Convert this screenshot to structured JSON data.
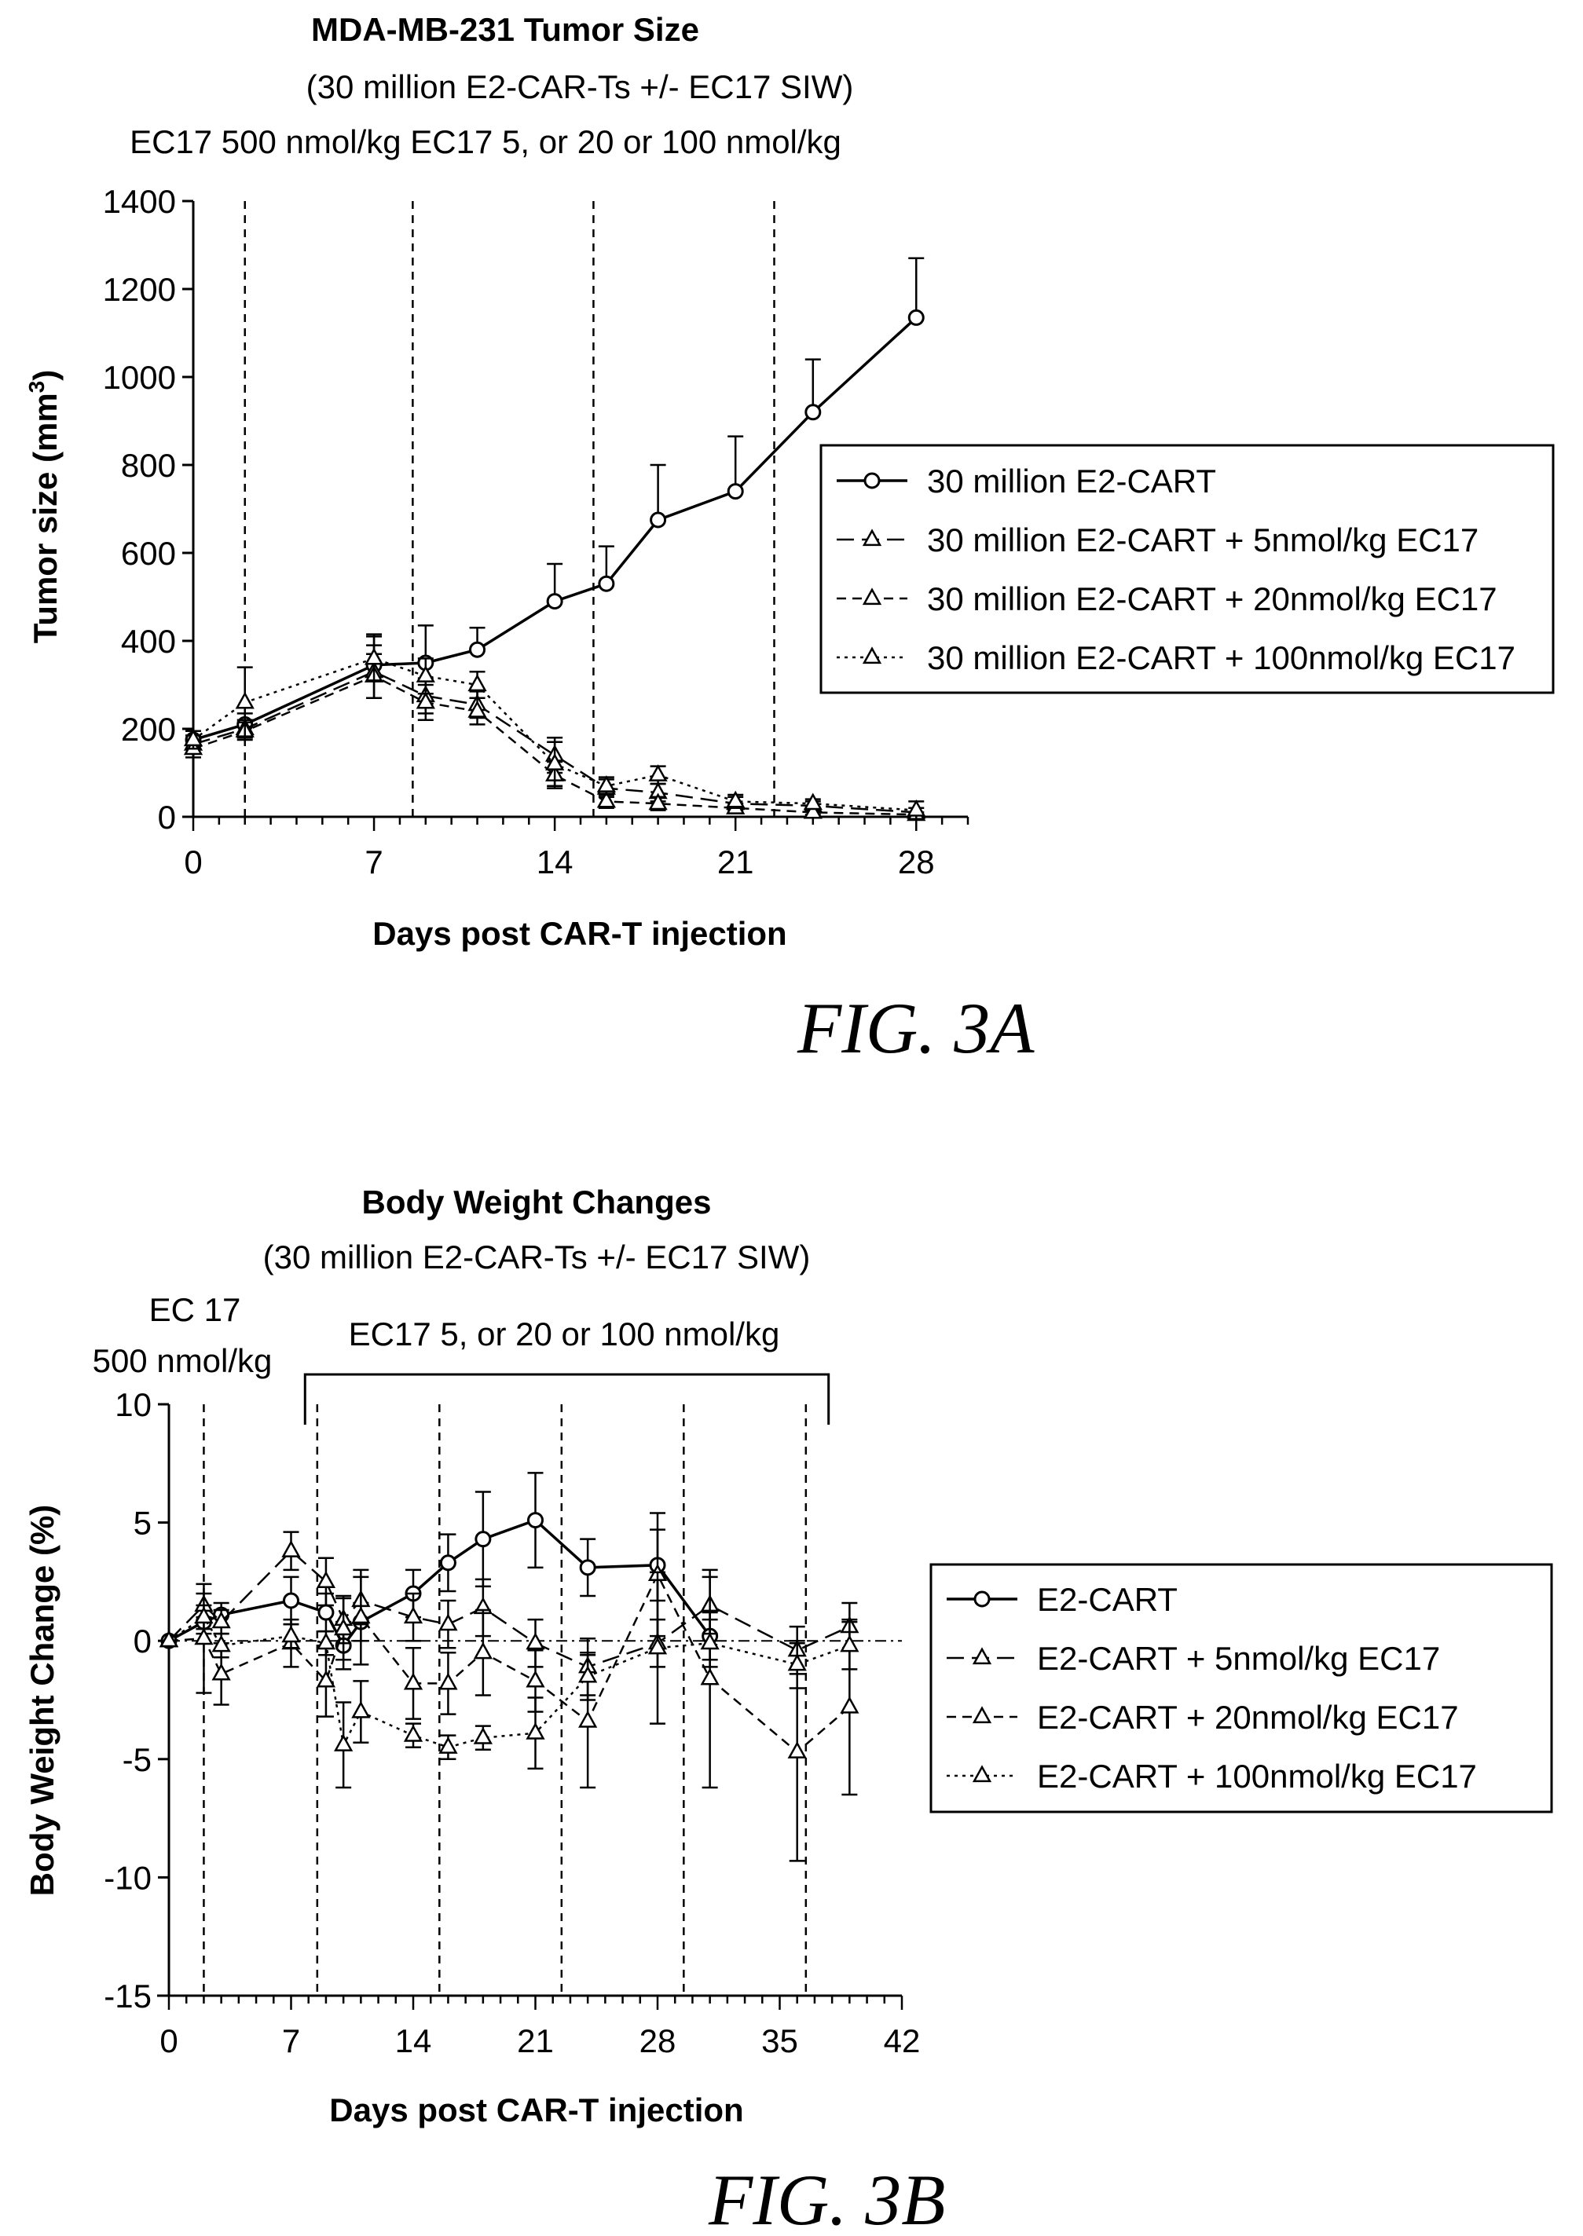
{
  "chart_data": [
    {
      "type": "line",
      "title": "MDA-MB-231 Tumor Size",
      "subtitle": "(30 million E2-CAR-Ts +/- EC17 SIW)",
      "subtitle2": "EC17 500 nmol/kg EC17 5, or 20 or 100 nmol/kg",
      "xlabel": "Days post CAR-T injection",
      "ylabel": "Tumor size (mm³)",
      "ylabel_main": "Tumor size (mm",
      "ylabel_sup": "3",
      "ylabel_end": ")",
      "xlim": [
        0,
        30
      ],
      "ylim": [
        0,
        1400
      ],
      "xticks": [
        0,
        7,
        14,
        21,
        28
      ],
      "yticks": [
        0,
        200,
        400,
        600,
        800,
        1000,
        1200,
        1400
      ],
      "dosing_days": [
        2,
        8.5,
        15.5,
        22.5
      ],
      "legend_position": "right",
      "figure_label": "FIG. 3A",
      "series": [
        {
          "name": "30 million E2-CART",
          "marker": "circle",
          "dash": "solid",
          "x": [
            0,
            2,
            7,
            9,
            11,
            14,
            16,
            18,
            21,
            24,
            28
          ],
          "y": [
            175,
            210,
            345,
            350,
            380,
            490,
            530,
            675,
            740,
            920,
            1135
          ],
          "err": [
            20,
            25,
            70,
            85,
            50,
            85,
            85,
            125,
            125,
            120,
            135
          ]
        },
        {
          "name": "30 million E2-CART + 5nmol/kg EC17",
          "marker": "triangle",
          "dash": "longdash",
          "x": [
            0,
            2,
            7,
            9,
            11,
            14,
            16,
            18,
            21,
            24,
            28
          ],
          "y": [
            165,
            200,
            330,
            275,
            255,
            140,
            65,
            55,
            30,
            25,
            10
          ],
          "err": [
            20,
            20,
            60,
            40,
            30,
            40,
            20,
            20,
            15,
            10,
            10
          ]
        },
        {
          "name": "30 million E2-CART + 20nmol/kg EC17",
          "marker": "triangle",
          "dash": "dash",
          "x": [
            0,
            2,
            7,
            9,
            11,
            14,
            16,
            18,
            21,
            24,
            28
          ],
          "y": [
            155,
            195,
            320,
            260,
            240,
            95,
            35,
            30,
            20,
            10,
            5
          ],
          "err": [
            20,
            20,
            50,
            40,
            30,
            30,
            15,
            15,
            10,
            5,
            5
          ]
        },
        {
          "name": "30 million E2-CART + 100nmol/kg EC17",
          "marker": "triangle",
          "dash": "dot",
          "x": [
            0,
            2,
            7,
            9,
            11,
            14,
            16,
            18,
            21,
            24,
            28
          ],
          "y": [
            175,
            260,
            360,
            320,
            300,
            120,
            70,
            95,
            35,
            30,
            15
          ],
          "err": [
            20,
            80,
            50,
            40,
            30,
            50,
            20,
            20,
            15,
            10,
            20
          ]
        }
      ]
    },
    {
      "type": "line",
      "title": "Body Weight Changes",
      "subtitle": "(30 million E2-CAR-Ts +/- EC17 SIW)",
      "annotation_ec17_line1": "EC 17",
      "annotation_ec17_line2": "500 nmol/kg",
      "annotation_bracket": "EC17 5, or 20 or 100 nmol/kg",
      "xlabel": "Days post CAR-T injection",
      "ylabel": "Body Weight Change (%)",
      "xlim": [
        0,
        42
      ],
      "ylim": [
        -15,
        10
      ],
      "xticks": [
        0,
        7,
        14,
        21,
        28,
        35,
        42
      ],
      "yticks": [
        -15,
        -10,
        -5,
        0,
        5,
        10
      ],
      "dosing_days": [
        2,
        8.5,
        15.5,
        22.5,
        29.5,
        36.5
      ],
      "bracket_days": [
        7.8,
        37.8
      ],
      "legend_position": "right",
      "figure_label": "FIG. 3B",
      "series": [
        {
          "name": "E2-CART",
          "marker": "circle",
          "dash": "solid",
          "x": [
            0,
            2,
            3,
            7,
            9,
            10,
            11,
            14,
            16,
            18,
            21,
            24,
            28,
            31
          ],
          "y": [
            0,
            0.8,
            1.1,
            1.7,
            1.2,
            -0.2,
            0.8,
            2.0,
            3.3,
            4.3,
            5.1,
            3.1,
            3.2,
            0.2
          ],
          "err": [
            0,
            0.5,
            0.5,
            1.0,
            0.8,
            1.0,
            0.8,
            1.0,
            1.2,
            2.0,
            2.0,
            1.2,
            1.5,
            1.0
          ]
        },
        {
          "name": "E2-CART + 5nmol/kg EC17",
          "marker": "triangle",
          "dash": "longdash",
          "x": [
            0,
            2,
            3,
            7,
            9,
            10,
            11,
            14,
            16,
            18,
            21,
            24,
            28,
            31,
            36,
            39
          ],
          "y": [
            0,
            1.5,
            0.8,
            3.8,
            2.5,
            0.9,
            1.7,
            1.0,
            0.7,
            1.4,
            -0.1,
            -1.1,
            -0.1,
            1.5,
            -0.4,
            0.6
          ],
          "err": [
            0,
            0.5,
            0.5,
            0.8,
            1.0,
            1.0,
            1.0,
            1.0,
            1.0,
            1.2,
            1.0,
            1.2,
            1.0,
            1.2,
            1.0,
            1.0
          ]
        },
        {
          "name": "E2-CART + 20nmol/kg EC17",
          "marker": "triangle",
          "dash": "dash",
          "x": [
            0,
            2,
            3,
            7,
            9,
            10,
            11,
            14,
            16,
            18,
            21,
            24,
            28,
            31,
            36,
            39
          ],
          "y": [
            0,
            0.1,
            -1.4,
            -0.1,
            -1.7,
            0.5,
            1.0,
            -1.8,
            -1.8,
            -0.5,
            -1.7,
            -3.4,
            2.8,
            -1.6,
            -4.7,
            -2.8
          ],
          "err": [
            0,
            2.3,
            1.3,
            1.0,
            1.5,
            1.3,
            2.0,
            1.5,
            1.3,
            1.8,
            1.3,
            2.8,
            2.6,
            4.6,
            4.6,
            3.7
          ]
        },
        {
          "name": "E2-CART + 100nmol/kg EC17",
          "marker": "triangle",
          "dash": "dot",
          "x": [
            0,
            2,
            3,
            7,
            9,
            10,
            11,
            14,
            16,
            18,
            21,
            24,
            28,
            31,
            36,
            39
          ],
          "y": [
            0,
            1.0,
            -0.2,
            0.2,
            -0.1,
            -4.4,
            -3.0,
            -4.0,
            -4.5,
            -4.1,
            -3.9,
            -1.5,
            -0.3,
            -0.1,
            -1.0,
            -0.2
          ],
          "err": [
            0,
            0.5,
            0.5,
            0.5,
            0.5,
            1.8,
            1.3,
            0.5,
            0.5,
            0.5,
            1.5,
            1.0,
            3.2,
            1.0,
            1.0,
            1.0
          ]
        }
      ]
    }
  ]
}
